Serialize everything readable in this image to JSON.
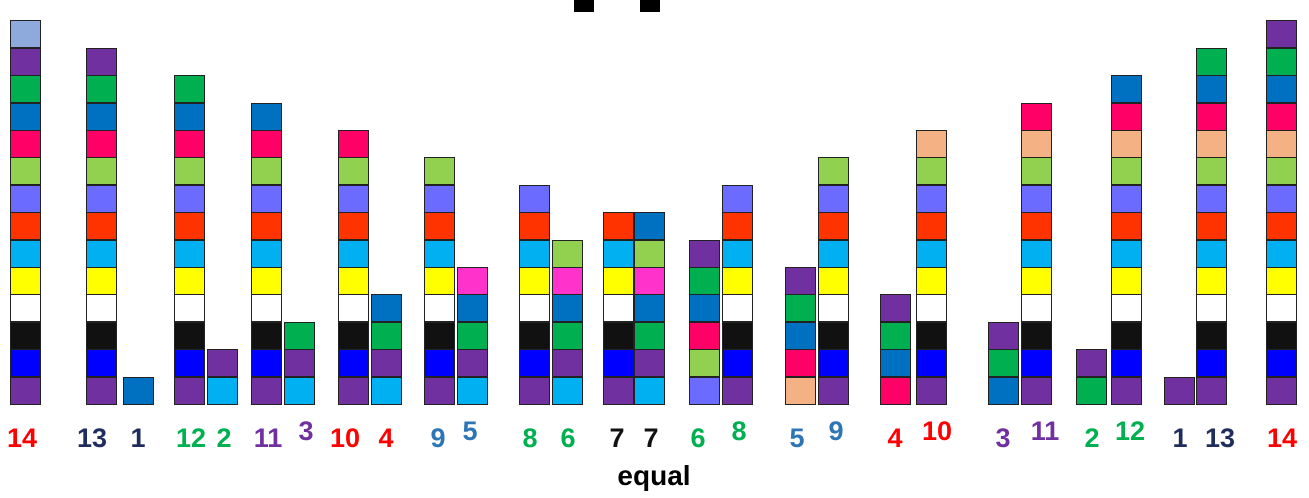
{
  "colors": {
    "purple": "#7030A0",
    "blue": "#0000FF",
    "black": "#111111",
    "white": "#FFFFFF",
    "yellow": "#FFFF00",
    "cyan": "#00B0F0",
    "red": "#FF3300",
    "periwinkle": "#6B6BFF",
    "lightgreen": "#92D050",
    "pink": "#FF0066",
    "steelblue": "#0070C0",
    "green": "#00B050",
    "lightblue": "#8EA9DB",
    "magenta": "#FF33CC",
    "peach": "#F4B183"
  },
  "stacks": [
    {
      "label": "14",
      "label_color": "#FF0000",
      "cells": [
        "purple",
        "blue",
        "black",
        "white",
        "yellow",
        "cyan",
        "red",
        "periwinkle",
        "lightgreen",
        "pink",
        "steelblue",
        "green",
        "purple",
        "lightblue"
      ]
    },
    {
      "label": "13",
      "label_color": "#1F2D5C",
      "cells": [
        "purple",
        "blue",
        "black",
        "white",
        "yellow",
        "cyan",
        "red",
        "periwinkle",
        "lightgreen",
        "pink",
        "steelblue",
        "green",
        "purple"
      ]
    },
    {
      "label": "1",
      "label_color": "#1F2D5C",
      "cells": [
        "steelblue"
      ]
    },
    {
      "label": "12",
      "label_color": "#00B050",
      "cells": [
        "purple",
        "blue",
        "black",
        "white",
        "yellow",
        "cyan",
        "red",
        "periwinkle",
        "lightgreen",
        "pink",
        "steelblue",
        "green"
      ]
    },
    {
      "label": "2",
      "label_color": "#00B050",
      "cells": [
        "cyan",
        "purple"
      ]
    },
    {
      "label": "11",
      "label_color": "#7030A0",
      "cells": [
        "purple",
        "blue",
        "black",
        "white",
        "yellow",
        "cyan",
        "red",
        "periwinkle",
        "lightgreen",
        "pink",
        "steelblue"
      ]
    },
    {
      "label": "3",
      "label_color": "#7030A0",
      "cells": [
        "cyan",
        "purple",
        "green"
      ]
    },
    {
      "label": "10",
      "label_color": "#FF0000",
      "cells": [
        "purple",
        "blue",
        "black",
        "white",
        "yellow",
        "cyan",
        "red",
        "periwinkle",
        "lightgreen",
        "pink"
      ]
    },
    {
      "label": "4",
      "label_color": "#FF0000",
      "cells": [
        "cyan",
        "purple",
        "green",
        "steelblue"
      ]
    },
    {
      "label": "9",
      "label_color": "#2E75B6",
      "cells": [
        "purple",
        "blue",
        "black",
        "white",
        "yellow",
        "cyan",
        "red",
        "periwinkle",
        "lightgreen"
      ]
    },
    {
      "label": "5",
      "label_color": "#2E75B6",
      "cells": [
        "cyan",
        "purple",
        "green",
        "steelblue",
        "magenta"
      ]
    },
    {
      "label": "8",
      "label_color": "#00B050",
      "cells": [
        "purple",
        "blue",
        "black",
        "white",
        "yellow",
        "cyan",
        "red",
        "periwinkle"
      ]
    },
    {
      "label": "6",
      "label_color": "#00B050",
      "cells": [
        "cyan",
        "purple",
        "green",
        "steelblue",
        "magenta",
        "lightgreen"
      ]
    },
    {
      "label": "7",
      "label_color": "#111111",
      "cells": [
        "purple",
        "blue",
        "black",
        "white",
        "yellow",
        "cyan",
        "red"
      ]
    },
    {
      "label": "7",
      "label_color": "#111111",
      "cells": [
        "cyan",
        "purple",
        "green",
        "steelblue",
        "magenta",
        "lightgreen",
        "steelblue"
      ]
    },
    {
      "label": "6",
      "label_color": "#00B050",
      "cells": [
        "periwinkle",
        "lightgreen",
        "pink",
        "steelblue",
        "green",
        "purple"
      ]
    },
    {
      "label": "8",
      "label_color": "#00B050",
      "cells": [
        "purple",
        "blue",
        "black",
        "white",
        "yellow",
        "cyan",
        "red",
        "periwinkle"
      ]
    },
    {
      "label": "5",
      "label_color": "#2E75B6",
      "cells": [
        "peach",
        "pink",
        "steelblue",
        "green",
        "purple"
      ]
    },
    {
      "label": "9",
      "label_color": "#2E75B6",
      "cells": [
        "purple",
        "blue",
        "black",
        "white",
        "yellow",
        "cyan",
        "red",
        "periwinkle",
        "lightgreen"
      ]
    },
    {
      "label": "4",
      "label_color": "#FF0000",
      "cells": [
        "pink",
        "steelblue",
        "green",
        "purple"
      ]
    },
    {
      "label": "10",
      "label_color": "#FF0000",
      "cells": [
        "purple",
        "blue",
        "black",
        "white",
        "yellow",
        "cyan",
        "red",
        "periwinkle",
        "lightgreen",
        "peach"
      ]
    },
    {
      "label": "3",
      "label_color": "#7030A0",
      "cells": [
        "steelblue",
        "green",
        "purple"
      ]
    },
    {
      "label": "11",
      "label_color": "#7030A0",
      "cells": [
        "purple",
        "blue",
        "black",
        "white",
        "yellow",
        "cyan",
        "red",
        "periwinkle",
        "lightgreen",
        "peach",
        "pink"
      ]
    },
    {
      "label": "2",
      "label_color": "#00B050",
      "cells": [
        "green",
        "purple"
      ]
    },
    {
      "label": "12",
      "label_color": "#00B050",
      "cells": [
        "purple",
        "blue",
        "black",
        "white",
        "yellow",
        "cyan",
        "red",
        "periwinkle",
        "lightgreen",
        "peach",
        "pink",
        "steelblue"
      ]
    },
    {
      "label": "1",
      "label_color": "#1F2D5C",
      "cells": [
        "purple"
      ]
    },
    {
      "label": "13",
      "label_color": "#1F2D5C",
      "cells": [
        "purple",
        "blue",
        "black",
        "white",
        "yellow",
        "cyan",
        "red",
        "periwinkle",
        "lightgreen",
        "peach",
        "pink",
        "steelblue",
        "green"
      ]
    },
    {
      "label": "14",
      "label_color": "#FF0000",
      "cells": [
        "purple",
        "blue",
        "black",
        "white",
        "yellow",
        "cyan",
        "red",
        "periwinkle",
        "lightgreen",
        "peach",
        "pink",
        "steelblue",
        "green",
        "purple"
      ]
    }
  ],
  "caption": "equal"
}
